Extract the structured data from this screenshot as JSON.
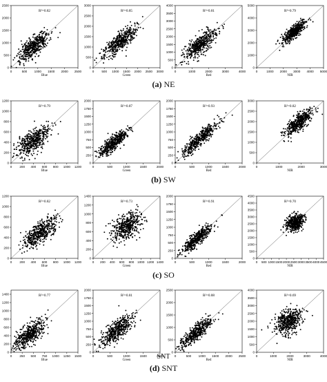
{
  "figure": {
    "row_captions": [
      {
        "label": "(a)",
        "name": "NE"
      },
      {
        "label": "(b)",
        "name": "SW"
      },
      {
        "label": "(c)",
        "name": "SO"
      },
      {
        "label": "(d)",
        "name": "SNT"
      }
    ],
    "stray_label": "SNT"
  },
  "chart_data": [
    {
      "type": "scatter",
      "region": "NE",
      "band": "Blue",
      "xlabel": "Blue",
      "annotation": "R²=0.82",
      "r2": 0.82,
      "xlim": [
        0,
        2500
      ],
      "ylim": [
        0,
        2500
      ],
      "xticks": [
        0,
        500,
        1000,
        1500,
        2000,
        2500
      ],
      "yticks": [
        0,
        500,
        1000,
        1500,
        2000,
        2500
      ],
      "diagonal": true,
      "center": [
        850,
        850
      ],
      "spread_along": 400,
      "spread_across": 150,
      "n_points": 450
    },
    {
      "type": "scatter",
      "region": "NE",
      "band": "Green",
      "xlabel": "Green",
      "annotation": "R²=0.85",
      "r2": 0.85,
      "xlim": [
        0,
        3000
      ],
      "ylim": [
        0,
        3000
      ],
      "xticks": [
        0,
        500,
        1000,
        1500,
        2000,
        2500,
        3000
      ],
      "yticks": [
        0,
        500,
        1000,
        1500,
        2000,
        2500,
        3000
      ],
      "diagonal": true,
      "center": [
        1200,
        1250
      ],
      "spread_along": 500,
      "spread_across": 170,
      "n_points": 450
    },
    {
      "type": "scatter",
      "region": "NE",
      "band": "Red",
      "xlabel": "Red",
      "annotation": "R²=0.81",
      "r2": 0.81,
      "xlim": [
        0,
        4000
      ],
      "ylim": [
        0,
        4000
      ],
      "xticks": [
        0,
        1000,
        2000,
        3000,
        4000
      ],
      "yticks": [
        0,
        500,
        1000,
        1500,
        2000,
        2500,
        3000,
        3500,
        4000
      ],
      "diagonal": true,
      "center": [
        1500,
        1500
      ],
      "spread_along": 650,
      "spread_across": 230,
      "n_points": 450
    },
    {
      "type": "scatter",
      "region": "NE",
      "band": "NIR",
      "xlabel": "NIR",
      "annotation": "R²=0.79",
      "r2": 0.79,
      "xlim": [
        0,
        5000
      ],
      "ylim": [
        0,
        5000
      ],
      "xticks": [
        0,
        1000,
        2000,
        3000,
        4000,
        5000
      ],
      "yticks": [
        0,
        1000,
        2000,
        3000,
        4000,
        5000
      ],
      "diagonal": true,
      "center": [
        2800,
        2900
      ],
      "spread_along": 550,
      "spread_across": 200,
      "n_points": 450
    },
    {
      "type": "scatter",
      "region": "SW",
      "band": "Blue",
      "xlabel": "Blue",
      "annotation": "R²=0.79",
      "r2": 0.79,
      "xlim": [
        0,
        1200
      ],
      "ylim": [
        0,
        1200
      ],
      "xticks": [
        0,
        200,
        400,
        600,
        800,
        1000,
        1200
      ],
      "yticks": [
        0,
        200,
        400,
        600,
        800,
        1000,
        1200
      ],
      "diagonal": true,
      "center": [
        380,
        420
      ],
      "spread_along": 190,
      "spread_across": 90,
      "n_points": 450
    },
    {
      "type": "scatter",
      "region": "SW",
      "band": "Green",
      "xlabel": "Green",
      "annotation": "R²=0.87",
      "r2": 0.87,
      "xlim": [
        0,
        2000
      ],
      "ylim": [
        0,
        2000
      ],
      "xticks": [
        0,
        500,
        1000,
        1500,
        2000
      ],
      "yticks": [
        0,
        250,
        500,
        750,
        1000,
        1250,
        1500,
        1750,
        2000
      ],
      "diagonal": true,
      "center": [
        600,
        650
      ],
      "spread_along": 280,
      "spread_across": 90,
      "n_points": 450
    },
    {
      "type": "scatter",
      "region": "SW",
      "band": "Red",
      "xlabel": "Red",
      "annotation": "R²=0.93",
      "r2": 0.93,
      "xlim": [
        0,
        2000
      ],
      "ylim": [
        0,
        2000
      ],
      "xticks": [
        0,
        500,
        1000,
        1500,
        2000
      ],
      "yticks": [
        0,
        250,
        500,
        750,
        1000,
        1250,
        1500,
        1750,
        2000
      ],
      "diagonal": true,
      "center": [
        750,
        780
      ],
      "spread_along": 380,
      "spread_across": 80,
      "n_points": 450
    },
    {
      "type": "scatter",
      "region": "SW",
      "band": "NIR",
      "xlabel": "NIR",
      "annotation": "R²=0.82",
      "r2": 0.82,
      "xlim": [
        0,
        3000
      ],
      "ylim": [
        0,
        3000
      ],
      "xticks": [
        0,
        1000,
        2000,
        3000
      ],
      "yticks": [
        0,
        500,
        1000,
        1500,
        2000,
        2500,
        3000
      ],
      "diagonal": true,
      "center": [
        1900,
        1950
      ],
      "spread_along": 400,
      "spread_across": 150,
      "n_points": 450
    },
    {
      "type": "scatter",
      "region": "SO",
      "band": "Blue",
      "xlabel": "Blue",
      "annotation": "R²=0.82",
      "r2": 0.82,
      "xlim": [
        0,
        1200
      ],
      "ylim": [
        0,
        1200
      ],
      "xticks": [
        0,
        200,
        400,
        600,
        800,
        1000,
        1200
      ],
      "yticks": [
        0,
        200,
        400,
        600,
        800,
        1000,
        1200
      ],
      "diagonal": true,
      "center": [
        520,
        500
      ],
      "spread_along": 200,
      "spread_across": 80,
      "n_points": 450
    },
    {
      "type": "scatter",
      "region": "SO",
      "band": "Green",
      "xlabel": "Green",
      "annotation": "R²=0.73",
      "r2": 0.73,
      "xlim": [
        0,
        1400
      ],
      "ylim": [
        0,
        1400
      ],
      "xticks": [
        0,
        200,
        400,
        600,
        800,
        1000,
        1200,
        1400
      ],
      "yticks": [
        0,
        200,
        400,
        600,
        800,
        1000,
        1200,
        1400
      ],
      "diagonal": true,
      "center": [
        700,
        720
      ],
      "spread_along": 200,
      "spread_across": 110,
      "n_points": 450
    },
    {
      "type": "scatter",
      "region": "SO",
      "band": "Red",
      "xlabel": "Red",
      "annotation": "R²=0.91",
      "r2": 0.91,
      "xlim": [
        0,
        2000
      ],
      "ylim": [
        0,
        2000
      ],
      "xticks": [
        0,
        500,
        1000,
        1500,
        2000
      ],
      "yticks": [
        0,
        250,
        500,
        750,
        1000,
        1250,
        1500,
        1750,
        2000
      ],
      "diagonal": true,
      "center": [
        650,
        620
      ],
      "spread_along": 300,
      "spread_across": 80,
      "n_points": 450
    },
    {
      "type": "scatter",
      "region": "SO",
      "band": "NIR",
      "xlabel": "NIR",
      "annotation": "R²=0.70",
      "r2": 0.7,
      "xlim": [
        0,
        4500
      ],
      "ylim": [
        0,
        4500
      ],
      "xticks": [
        0,
        500,
        1000,
        1500,
        2000,
        2500,
        3000,
        3500,
        4000,
        4500
      ],
      "yticks": [
        0,
        500,
        1000,
        1500,
        2000,
        2500,
        3000,
        3500,
        4000,
        4500
      ],
      "diagonal": true,
      "center": [
        2600,
        2600
      ],
      "spread_along": 350,
      "spread_across": 250,
      "n_points": 450
    },
    {
      "type": "scatter",
      "region": "SNT",
      "band": "Blue",
      "xlabel": "Blue",
      "annotation": "R²=0.77",
      "r2": 0.77,
      "xlim": [
        0,
        1500
      ],
      "ylim": [
        0,
        1500
      ],
      "xticks": [
        0,
        250,
        500,
        750,
        1000,
        1250,
        1500
      ],
      "yticks": [
        0,
        200,
        400,
        600,
        800,
        1000,
        1200,
        1400
      ],
      "diagonal": true,
      "center": [
        400,
        420
      ],
      "spread_along": 220,
      "spread_across": 100,
      "n_points": 450
    },
    {
      "type": "scatter",
      "region": "SNT",
      "band": "Green",
      "xlabel": "Green",
      "annotation": "R²=0.81",
      "r2": 0.81,
      "xlim": [
        0,
        2000
      ],
      "ylim": [
        0,
        2000
      ],
      "xticks": [
        0,
        500,
        1000,
        1500,
        2000
      ],
      "yticks": [
        0,
        250,
        500,
        750,
        1000,
        1250,
        1500,
        1750,
        2000
      ],
      "diagonal": true,
      "center": [
        700,
        700
      ],
      "spread_along": 320,
      "spread_across": 120,
      "n_points": 450
    },
    {
      "type": "scatter",
      "region": "SNT",
      "band": "Red",
      "xlabel": "Red",
      "annotation": "R²=0.88",
      "r2": 0.88,
      "xlim": [
        0,
        2500
      ],
      "ylim": [
        0,
        2500
      ],
      "xticks": [
        0,
        500,
        1000,
        1500,
        2000,
        2500
      ],
      "yticks": [
        0,
        500,
        1000,
        1500,
        2000,
        2500
      ],
      "diagonal": true,
      "center": [
        800,
        800
      ],
      "spread_along": 400,
      "spread_across": 120,
      "n_points": 450
    },
    {
      "type": "scatter",
      "region": "SNT",
      "band": "NIR",
      "xlabel": "NIR",
      "annotation": "R²=0.69",
      "r2": 0.69,
      "xlim": [
        0,
        4000
      ],
      "ylim": [
        0,
        4000
      ],
      "xticks": [
        0,
        1000,
        2000,
        3000,
        4000
      ],
      "yticks": [
        0,
        500,
        1000,
        1500,
        2000,
        2500,
        3000,
        3500,
        4000
      ],
      "diagonal": true,
      "center": [
        1900,
        2000
      ],
      "spread_along": 450,
      "spread_across": 350,
      "n_points": 450
    }
  ]
}
